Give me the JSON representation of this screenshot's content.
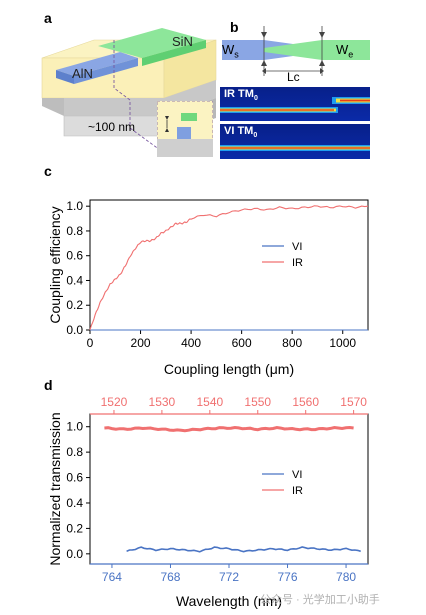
{
  "panels": {
    "a": {
      "label": "a",
      "sin_label": "SiN",
      "aln_label": "AlN",
      "gap_label": "~100 nm"
    },
    "b": {
      "label": "b",
      "ws_label": "W",
      "ws_sub": "s",
      "we_label": "W",
      "we_sub": "e",
      "lc_label": "Lc",
      "mode_top_main": "IR TM",
      "mode_top_sub": "0",
      "mode_bottom_main": "VI TM",
      "mode_bottom_sub": "0"
    },
    "c": {
      "label": "c"
    },
    "d": {
      "label": "d"
    }
  },
  "colors": {
    "vi": "#4a74c4",
    "ir": "#f07070",
    "sin": "#7fe08a",
    "aln": "#7f9fe0",
    "substrate": "#d8d8d8",
    "cladding": "#fbf3c2"
  },
  "watermark": "公众号 · 光学加工小助手",
  "chart_data": [
    {
      "type": "line",
      "panel": "c",
      "xlabel": "Coupling length (μm)",
      "ylabel": "Coupling efficiency",
      "xlim": [
        0,
        1100
      ],
      "ylim": [
        0,
        1.05
      ],
      "xticks": [
        "0",
        "200",
        "400",
        "600",
        "800",
        "1000"
      ],
      "yticks": [
        "0.0",
        "0.2",
        "0.4",
        "0.6",
        "0.8",
        "1.0"
      ],
      "legend": [
        "VI",
        "IR"
      ],
      "legend_position": "center",
      "series": [
        {
          "name": "VI",
          "x": [
            0,
            1100
          ],
          "y": [
            0.0,
            0.0
          ]
        },
        {
          "name": "IR",
          "x": [
            0,
            20,
            40,
            60,
            80,
            100,
            120,
            140,
            160,
            180,
            200,
            220,
            240,
            260,
            280,
            300,
            320,
            340,
            360,
            380,
            400,
            450,
            500,
            550,
            600,
            650,
            700,
            750,
            800,
            850,
            900,
            950,
            1000,
            1050,
            1100
          ],
          "y": [
            0.0,
            0.12,
            0.22,
            0.3,
            0.37,
            0.41,
            0.45,
            0.52,
            0.6,
            0.66,
            0.71,
            0.72,
            0.72,
            0.74,
            0.78,
            0.8,
            0.83,
            0.86,
            0.86,
            0.87,
            0.9,
            0.93,
            0.92,
            0.95,
            0.97,
            0.98,
            0.97,
            0.99,
            0.98,
            0.99,
            1.0,
            0.99,
            1.0,
            0.99,
            1.0
          ]
        }
      ]
    },
    {
      "type": "line",
      "panel": "d",
      "xlabel": "Wavelength (nm)",
      "ylabel": "Normalized transmission",
      "xlim": [
        762.5,
        781.5
      ],
      "x2lim": [
        1515,
        1573
      ],
      "ylim": [
        -0.08,
        1.1
      ],
      "xticks": [
        "764",
        "768",
        "772",
        "776",
        "780"
      ],
      "x2ticks": [
        "1520",
        "1530",
        "1540",
        "1550",
        "1560",
        "1570"
      ],
      "yticks": [
        "0.0",
        "0.2",
        "0.4",
        "0.6",
        "0.8",
        "1.0"
      ],
      "legend": [
        "VI",
        "IR"
      ],
      "legend_position": "center-right",
      "series": [
        {
          "name": "VI",
          "axis": "bottom",
          "x": [
            765,
            766,
            767,
            768,
            769,
            770,
            771,
            772,
            773,
            774,
            775,
            776,
            777,
            778,
            779,
            780,
            781
          ],
          "y": [
            0.02,
            0.05,
            0.03,
            0.04,
            0.03,
            0.02,
            0.05,
            0.04,
            0.02,
            0.03,
            0.04,
            0.03,
            0.05,
            0.04,
            0.03,
            0.04,
            0.02
          ]
        },
        {
          "name": "IR",
          "axis": "top",
          "x": [
            1518,
            1522,
            1526,
            1530,
            1534,
            1538,
            1542,
            1546,
            1550,
            1554,
            1558,
            1562,
            1566,
            1570
          ],
          "y": [
            0.99,
            0.98,
            0.99,
            0.98,
            0.97,
            0.98,
            0.99,
            0.99,
            0.98,
            0.99,
            0.98,
            0.98,
            0.99,
            0.99
          ]
        }
      ]
    }
  ]
}
